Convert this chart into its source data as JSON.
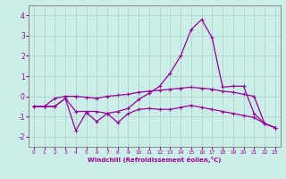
{
  "title": "",
  "xlabel": "Windchill (Refroidissement éolien,°C)",
  "bg_color": "#cceee8",
  "grid_color": "#aacccc",
  "line_color": "#990099",
  "xlim": [
    -0.5,
    23.5
  ],
  "ylim": [
    -2.5,
    4.5
  ],
  "yticks": [
    -2,
    -1,
    0,
    1,
    2,
    3,
    4
  ],
  "xticks": [
    0,
    1,
    2,
    3,
    4,
    5,
    6,
    7,
    8,
    9,
    10,
    11,
    12,
    13,
    14,
    15,
    16,
    17,
    18,
    19,
    20,
    21,
    22,
    23
  ],
  "line1_x": [
    0,
    1,
    2,
    3,
    4,
    5,
    6,
    7,
    8,
    9,
    10,
    11,
    12,
    13,
    14,
    15,
    16,
    17,
    18,
    19,
    20,
    21,
    22,
    23
  ],
  "line1_y": [
    -0.5,
    -0.5,
    -0.5,
    -0.1,
    -0.75,
    -0.75,
    -0.75,
    -0.85,
    -0.75,
    -0.6,
    -0.15,
    0.15,
    0.5,
    1.15,
    2.0,
    3.3,
    3.8,
    2.9,
    0.45,
    0.5,
    0.5,
    -0.85,
    -1.35,
    -1.55
  ],
  "line2_x": [
    0,
    1,
    2,
    3,
    4,
    5,
    6,
    7,
    8,
    9,
    10,
    11,
    12,
    13,
    14,
    15,
    16,
    17,
    18,
    19,
    20,
    21,
    22,
    23
  ],
  "line2_y": [
    -0.5,
    -0.5,
    -0.5,
    -0.1,
    -1.7,
    -0.8,
    -1.25,
    -0.85,
    -1.3,
    -0.85,
    -0.65,
    -0.6,
    -0.65,
    -0.65,
    -0.55,
    -0.45,
    -0.55,
    -0.65,
    -0.75,
    -0.85,
    -0.95,
    -1.05,
    -1.35,
    -1.55
  ],
  "line3_x": [
    0,
    1,
    2,
    3,
    4,
    5,
    6,
    7,
    8,
    9,
    10,
    11,
    12,
    13,
    14,
    15,
    16,
    17,
    18,
    19,
    20,
    21,
    22,
    23
  ],
  "line3_y": [
    -0.5,
    -0.5,
    -0.1,
    0.0,
    0.0,
    -0.05,
    -0.1,
    0.0,
    0.05,
    0.1,
    0.2,
    0.25,
    0.3,
    0.35,
    0.4,
    0.45,
    0.4,
    0.35,
    0.25,
    0.2,
    0.1,
    0.0,
    -1.35,
    -1.55
  ]
}
